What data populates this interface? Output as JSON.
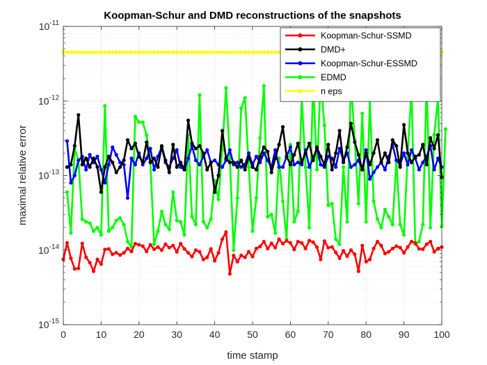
{
  "chart_data": {
    "type": "line",
    "title": "Koopman-Schur and DMD reconstructions of the snapshots",
    "xlabel": "time stamp",
    "ylabel": "maximal relative error",
    "xlim": [
      0,
      100
    ],
    "ylim": [
      1e-15,
      1e-11
    ],
    "yscale": "log",
    "x_ticks": [
      "0",
      "10",
      "20",
      "30",
      "40",
      "50",
      "60",
      "70",
      "80",
      "90",
      "100"
    ],
    "y_ticks": [
      {
        "base": "10",
        "exp": "-15"
      },
      {
        "base": "10",
        "exp": "-14"
      },
      {
        "base": "10",
        "exp": "-13"
      },
      {
        "base": "10",
        "exp": "-12"
      },
      {
        "base": "10",
        "exp": "-11"
      }
    ],
    "grid": true,
    "legend_position": "top-right",
    "series": [
      {
        "name": "Koopman-Schur-SSMD",
        "color": "#ff0000",
        "values": [
          7.5e-15,
          1.25e-14,
          7.8e-15,
          5.6e-15,
          5.7e-15,
          1.23e-14,
          8e-15,
          6.8e-15,
          5.2e-15,
          7.5e-15,
          6.5e-15,
          1.02e-14,
          1.04e-14,
          8.8e-15,
          9.2e-15,
          8.6e-15,
          9.2e-15,
          1.05e-14,
          9.6e-15,
          1.22e-14,
          1.18e-14,
          1.13e-14,
          9.6e-15,
          1.18e-14,
          1.03e-14,
          1.1e-14,
          1e-14,
          1.2e-14,
          1.08e-14,
          1.15e-14,
          9.5e-15,
          1.22e-14,
          1.04e-14,
          9.2e-15,
          8.2e-15,
          1e-14,
          9.5e-15,
          7.5e-15,
          8e-15,
          1.04e-14,
          7.2e-15,
          9.2e-15,
          1.4e-14,
          1.75e-14,
          4.8e-15,
          8.5e-15,
          7e-15,
          8.5e-15,
          8e-15,
          9.5e-15,
          8.2e-15,
          1.05e-14,
          1.12e-14,
          1.3e-14,
          1.05e-14,
          1.23e-14,
          1.08e-14,
          1.4e-14,
          1.22e-14,
          1.33e-14,
          1.25e-14,
          1.02e-14,
          1.3e-14,
          1.25e-14,
          1.05e-14,
          1.34e-14,
          1.28e-14,
          1.1e-14,
          7.5e-15,
          1.32e-14,
          1.08e-14,
          1.1e-14,
          9.3e-15,
          7.8e-15,
          9.8e-15,
          8.3e-15,
          1e-14,
          8.8e-15,
          5.2e-15,
          1.15e-14,
          7e-15,
          7.5e-15,
          1.05e-14,
          1.3e-14,
          1.15e-14,
          9e-15,
          9.5e-15,
          1.05e-14,
          1.13e-14,
          1.08e-14,
          9.2e-15,
          1.1e-14,
          1.3e-14,
          1.25e-14,
          1.04e-14,
          1.03e-14,
          1.2e-14,
          1.3e-14,
          9.5e-15,
          1.05e-14,
          1.1e-14
        ]
      },
      {
        "name": "DMD+",
        "color": "#000000",
        "values": [
          null,
          1.3e-13,
          1.4e-13,
          2.5e-13,
          6.5e-13,
          1.4e-13,
          1.7e-13,
          1.3e-13,
          1.7e-13,
          1.3e-13,
          6e-14,
          1.3e-13,
          1.8e-13,
          1.5e-13,
          1.1e-13,
          1.3e-13,
          1.6e-13,
          3e-13,
          2.3e-13,
          2.7e-13,
          1.8e-13,
          1.5e-13,
          2.8e-13,
          1.5e-13,
          1.7e-13,
          1.3e-13,
          2.5e-13,
          1.6e-13,
          1.1e-13,
          2.6e-13,
          1.3e-13,
          1.5e-13,
          1.2e-13,
          5.5e-13,
          2.7e-13,
          2.3e-13,
          2.5e-13,
          2e-13,
          1.2e-13,
          1.5e-13,
          6e-14,
          1e-13,
          4e-13,
          1.7e-13,
          1.5e-13,
          1.5e-13,
          1.3e-13,
          1.6e-13,
          1.2e-13,
          1.8e-13,
          1.3e-13,
          1.2e-13,
          1.8e-13,
          2.4e-13,
          2.1e-13,
          1.1e-13,
          1.7e-13,
          2.6e-13,
          4.5e-13,
          1.8e-13,
          1.4e-13,
          1.9e-13,
          2.7e-13,
          1.5e-13,
          2e-13,
          2.7e-13,
          1.6e-13,
          2.4e-13,
          1.8e-13,
          1.4e-13,
          2.6e-13,
          1.2e-13,
          2e-13,
          4e-13,
          1.5e-13,
          2.4e-13,
          5e-13,
          2.8e-13,
          1.9e-13,
          1.2e-13,
          2e-13,
          1.4e-13,
          2e-13,
          3e-13,
          1.5e-13,
          2e-13,
          1.5e-13,
          3e-13,
          2.5e-13,
          1.3e-13,
          4.8e-13,
          2e-13,
          1.5e-13,
          1.8e-13,
          1.9e-13,
          2.6e-13,
          1.4e-13,
          3.2e-13,
          2.3e-13,
          3.5e-13,
          9.5e-14
        ]
      },
      {
        "name": "Koopman-Schur-ESSMD",
        "color": "#0000ff",
        "values": [
          null,
          2.9e-13,
          8e-14,
          1e-13,
          1.6e-13,
          1.8e-13,
          1.2e-13,
          1.9e-13,
          1.5e-13,
          1.8e-13,
          1.2e-13,
          8e-14,
          1.4e-13,
          2.4e-13,
          1.9e-13,
          1.5e-13,
          1.4e-13,
          5e-14,
          1.7e-13,
          1.4e-13,
          2e-13,
          1.4e-13,
          1.7e-13,
          2.3e-13,
          1.2e-13,
          1.8e-13,
          2.4e-13,
          1.5e-13,
          1.3e-13,
          1.7e-13,
          2.2e-13,
          1.3e-13,
          1.2e-13,
          1.7e-13,
          2.5e-13,
          1.6e-13,
          1.4e-13,
          1.8e-13,
          2.2e-13,
          1.5e-13,
          1.6e-13,
          1.4e-13,
          1.3e-13,
          1.6e-13,
          2.2e-13,
          1.4e-13,
          1.5e-13,
          1.3e-13,
          1.4e-13,
          2e-13,
          1.4e-13,
          1.8e-13,
          1.5e-13,
          2e-13,
          1.6e-13,
          1.3e-13,
          2.2e-13,
          1.3e-13,
          1.3e-13,
          1.8e-13,
          2.4e-13,
          1.4e-13,
          1.5e-13,
          1.4e-13,
          2.2e-13,
          1.3e-13,
          1.7e-13,
          2.3e-13,
          1.4e-13,
          1.3e-13,
          1.8e-13,
          1.7e-13,
          1.3e-13,
          2.3e-13,
          1.6e-13,
          2e-13,
          1.3e-13,
          1.4e-13,
          1.6e-13,
          1.2e-13,
          2.2e-13,
          9e-14,
          1.1e-13,
          1.3e-13,
          1.5e-13,
          1.2e-13,
          1.8e-13,
          2.6e-13,
          1.6e-13,
          1.4e-13,
          2e-13,
          1.4e-13,
          2.2e-13,
          1.7e-13,
          1.2e-13,
          1.5e-13,
          1.8e-13,
          2.5e-13,
          1.2e-13,
          1.7e-13,
          1.3e-13
        ]
      },
      {
        "name": "EDMD",
        "color": "#00ff00",
        "values": [
          null,
          6e-14,
          1.7e-14,
          2.3e-13,
          1.6e-13,
          2.6e-14,
          2.4e-14,
          2.3e-14,
          1.8e-14,
          2e-14,
          1.6e-14,
          8.6e-13,
          1.8e-14,
          2e-14,
          2.5e-14,
          2.7e-14,
          2.2e-14,
          1.3e-14,
          1.1e-14,
          6.2e-13,
          5.2e-13,
          5.2e-13,
          3.5e-13,
          1.5e-13,
          1.2e-14,
          1.8e-14,
          3.3e-14,
          2.2e-14,
          1.9e-14,
          6e-14,
          2.5e-14,
          2.4e-14,
          1.6e-14,
          3.5e-13,
          2.8e-14,
          2.2e-14,
          1.2e-12,
          2.4e-14,
          2e-14,
          2.6e-14,
          8.5e-14,
          4.8e-14,
          2.2e-13,
          1.5e-12,
          1.7e-13,
          1e-14,
          5e-14,
          8e-13,
          1.1e-12,
          1.3e-13,
          1.8e-14,
          5e-14,
          3.2e-13,
          1.6e-12,
          2.8e-14,
          3e-14,
          1.7e-14,
          1.7e-13,
          4.5e-14,
          1.4e-14,
          2.6e-13,
          2.4e-14,
          3.3e-14,
          1.1e-12,
          1.3e-13,
          2e-14,
          1.9e-12,
          1.2e-13,
          1.9e-12,
          4.7e-13,
          4e-14,
          4.2e-14,
          1.4e-14,
          1.2e-14,
          1.3e-13,
          2.4e-14,
          1.9e-12,
          3e-13,
          4.2e-14,
          6.8e-13,
          2.4e-14,
          1e-12,
          4.5e-14,
          2.6e-14,
          2e-14,
          3.5e-14,
          2.8e-14,
          2.2e-14,
          1.6e-13,
          2.2e-14,
          1.6e-14,
          2e-13,
          1.4e-12,
          1.2e-14,
          1.3e-14,
          2.2e-14,
          1.8e-12,
          2e-14,
          3.5e-13,
          1.1e-12,
          2.1e-14,
          4.2e-13
        ]
      },
      {
        "name": "n eps",
        "color": "#ffff00",
        "constant": 4.5e-12
      }
    ]
  }
}
